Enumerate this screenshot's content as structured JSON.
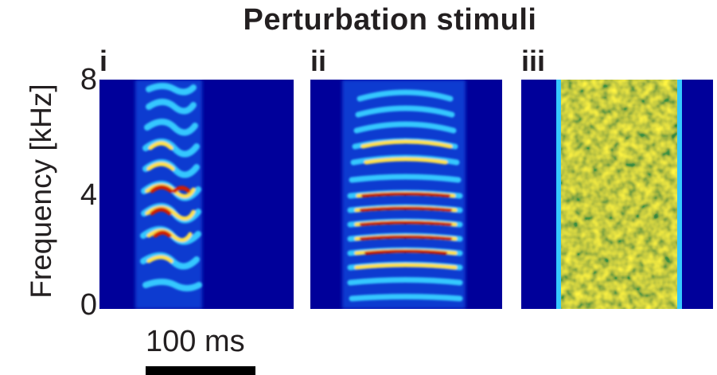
{
  "figure": {
    "title": "Perturbation stimuli",
    "y_axis_label": "Frequency [kHz]",
    "y_ticks": [
      "8",
      "4",
      "0"
    ],
    "scale_bar_label": "100 ms",
    "colors": {
      "background": "#00009a",
      "low": "#3aa0ff",
      "mid": "#ffe14a",
      "high": "#c81400"
    },
    "panels": [
      {
        "label": "i",
        "content": "harmonic stack, short"
      },
      {
        "label": "ii",
        "content": "harmonic stack, long"
      },
      {
        "label": "iii",
        "content": "broadband noise"
      }
    ]
  }
}
